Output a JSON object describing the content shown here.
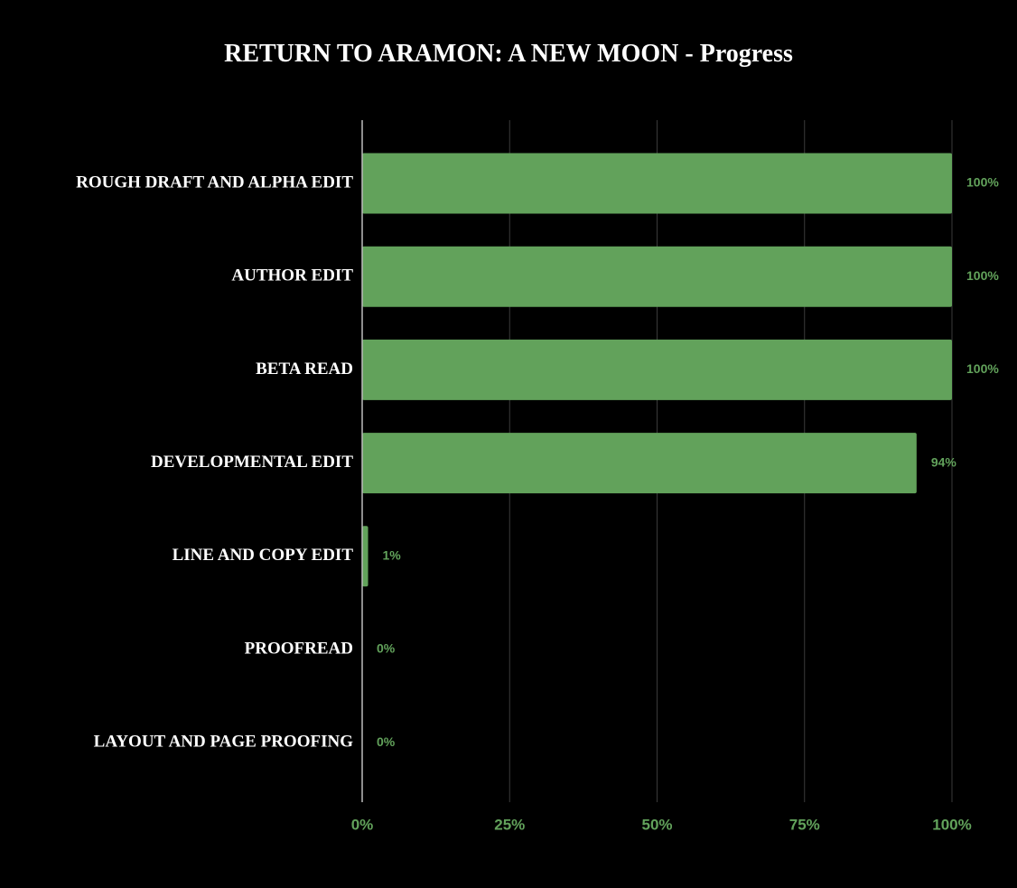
{
  "title": "RETURN TO ARAMON: A NEW MOON - Progress",
  "colors": {
    "background": "#000000",
    "bar": "#62a25b",
    "grid": "#3a3a3a",
    "axis": "#bdbdbd",
    "tick_text": "#62a25b",
    "data_label_text": "#62a25b",
    "category_text": "#ffffff"
  },
  "chart_data": {
    "type": "bar",
    "orientation": "horizontal",
    "title": "RETURN TO ARAMON: A NEW MOON - Progress",
    "categories": [
      "ROUGH DRAFT AND ALPHA EDIT",
      "AUTHOR EDIT",
      "BETA READ",
      "DEVELOPMENTAL EDIT",
      "LINE AND COPY EDIT",
      "PROOFREAD",
      "LAYOUT AND PAGE PROOFING"
    ],
    "values": [
      100,
      100,
      100,
      94,
      1,
      0,
      0
    ],
    "data_labels": [
      "100%",
      "100%",
      "100%",
      "94%",
      "1%",
      "0%",
      "0%"
    ],
    "xlim": [
      0,
      100
    ],
    "x_ticks": [
      0,
      25,
      50,
      75,
      100
    ],
    "x_tick_labels": [
      "0%",
      "25%",
      "50%",
      "75%",
      "100%"
    ],
    "xlabel": "",
    "ylabel": "",
    "grid": true,
    "legend": "none"
  }
}
